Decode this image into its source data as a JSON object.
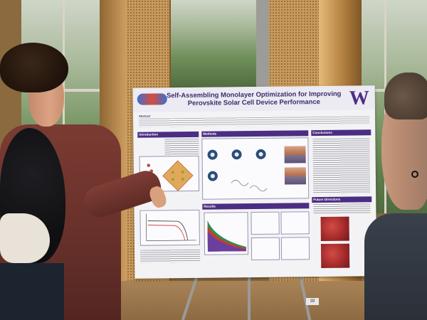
{
  "poster": {
    "title": "Self-Assembling Monolayer Optimization for Improving Perovskite Solar Cell Device Performance",
    "logo_letter": "W",
    "sections": {
      "abstract": "Abstract",
      "introduction": "Introduction",
      "methods": "Methods",
      "conclusions": "Conclusions",
      "results": "Results",
      "future_directions": "Future Directions"
    }
  },
  "room_tag": "39",
  "colors": {
    "poster_accent": "#4b2e83",
    "jacket": "#6a322b",
    "wood": "#c99a5c"
  }
}
